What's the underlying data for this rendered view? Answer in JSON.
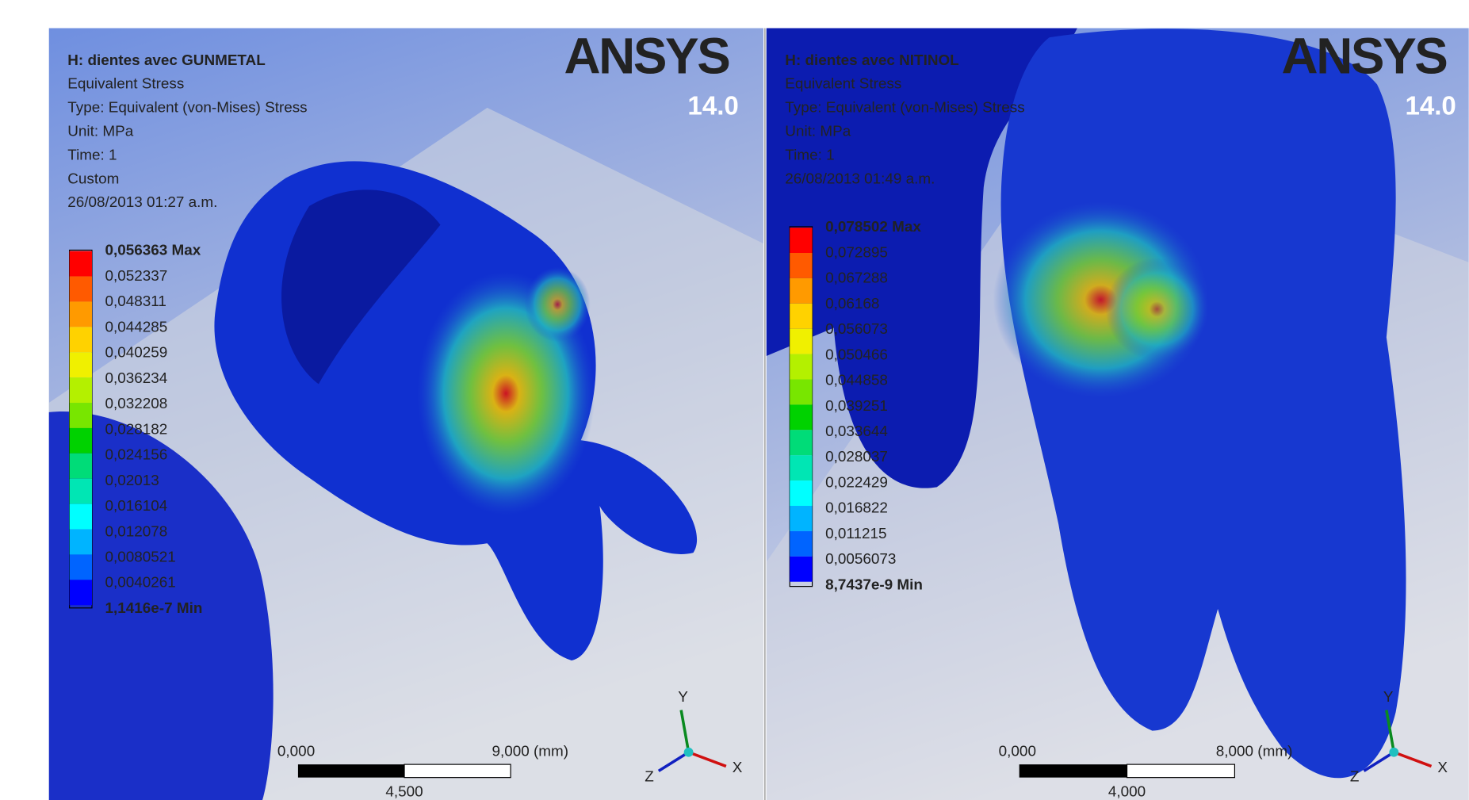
{
  "panels": [
    {
      "header": [
        "H: dientes avec GUNMETAL",
        "Equivalent Stress",
        "Type: Equivalent (von-Mises) Stress",
        "Unit: MPa",
        "Time: 1",
        "Custom",
        "26/08/2013 01:27 a.m."
      ],
      "legend": [
        "0,056363 Max",
        "0,052337",
        "0,048311",
        "0,044285",
        "0,040259",
        "0,036234",
        "0,032208",
        "0,028182",
        "0,024156",
        "0,02013",
        "0,016104",
        "0,012078",
        "0,0080521",
        "0,0040261",
        "1,1416e-7 Min"
      ],
      "logo": "ANSYS",
      "version": "14.0",
      "scale": {
        "start": "0,000",
        "end": "9,000 (mm)",
        "mid": "4,500"
      },
      "axes": [
        "Y",
        "X",
        "Z"
      ]
    },
    {
      "header": [
        "H: dientes avec NITINOL",
        "Equivalent Stress",
        "Type: Equivalent (von-Mises) Stress",
        "Unit: MPa",
        "Time: 1",
        "26/08/2013 01:49 a.m."
      ],
      "legend": [
        "0,078502 Max",
        "0,072895",
        "0,067288",
        "0,06168",
        "0,056073",
        "0,050466",
        "0,044858",
        "0,039251",
        "0,033644",
        "0,028037",
        "0,022429",
        "0,016822",
        "0,011215",
        "0,0056073",
        "8,7437e-9 Min"
      ],
      "logo": "ANSYS",
      "version": "14.0",
      "scale": {
        "start": "0,000",
        "end": "8,000 (mm)",
        "mid": "4,000"
      },
      "axes": [
        "Y",
        "X",
        "Z"
      ]
    }
  ]
}
